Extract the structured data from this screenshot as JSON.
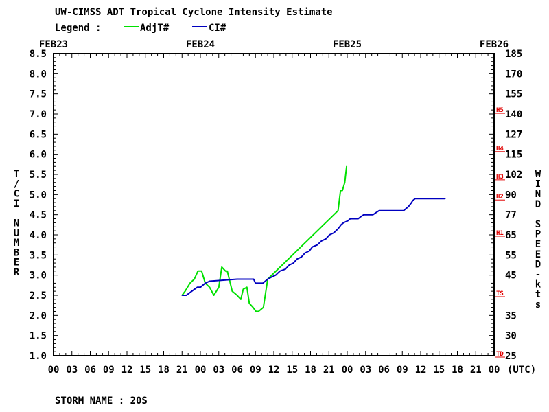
{
  "header": {
    "title": "UW-CIMSS ADT Tropical Cyclone Intensity Estimate",
    "legend_label": "Legend :",
    "legend_items": [
      {
        "name": "AdjT#",
        "color": "#00e000"
      },
      {
        "name": "CI#",
        "color": "#0000c0"
      }
    ]
  },
  "footer": {
    "storm_name": "STORM NAME : 20S"
  },
  "chart_data": {
    "type": "line",
    "title": "UW-CIMSS ADT Tropical Cyclone Intensity Estimate",
    "ylabel_left": "T/CI NUMBER",
    "ylabel_right": "WIND SPEED-kts",
    "xlabel_unit": "(UTC)",
    "x_range_hours": [
      0,
      72
    ],
    "ylim": [
      1.0,
      8.5
    ],
    "date_labels": [
      {
        "label": "FEB23",
        "hour": 0
      },
      {
        "label": "FEB24",
        "hour": 24
      },
      {
        "label": "FEB25",
        "hour": 48
      },
      {
        "label": "FEB26",
        "hour": 72
      }
    ],
    "x_tick_labels": [
      "00",
      "03",
      "06",
      "09",
      "12",
      "15",
      "18",
      "21",
      "00",
      "03",
      "06",
      "09",
      "12",
      "15",
      "18",
      "21",
      "00",
      "03",
      "06",
      "09",
      "12",
      "15",
      "18",
      "21",
      "00"
    ],
    "left_ticks": [
      "1.0",
      "1.5",
      "2.0",
      "2.5",
      "3.0",
      "3.5",
      "4.0",
      "4.5",
      "5.0",
      "5.5",
      "6.0",
      "6.5",
      "7.0",
      "7.5",
      "8.0",
      "8.5"
    ],
    "right_ticks": [
      "25",
      "30",
      "35",
      "45",
      "55",
      "65",
      "77",
      "90",
      "102",
      "115",
      "127",
      "140",
      "155",
      "170",
      "185"
    ],
    "category_markers": [
      {
        "label": "TD",
        "t": 1.0
      },
      {
        "label": "TS",
        "t": 2.5
      },
      {
        "label": "H1",
        "t": 4.0
      },
      {
        "label": "H2",
        "t": 4.9
      },
      {
        "label": "H3",
        "t": 5.4
      },
      {
        "label": "H4",
        "t": 6.1
      },
      {
        "label": "H5",
        "t": 7.05
      }
    ],
    "series": [
      {
        "name": "AdjT#",
        "color": "#00e000",
        "x": [
          21.0,
          21.5,
          22.3,
          23.0,
          23.6,
          24.2,
          24.8,
          25.5,
          26.2,
          27.0,
          27.5,
          28.1,
          28.4,
          29.2,
          30.0,
          30.6,
          31.0,
          31.6,
          32.0,
          32.6,
          33.1,
          33.5,
          34.3,
          35.0,
          46.5,
          46.9,
          47.2,
          47.6,
          47.9
        ],
        "values": [
          2.5,
          2.6,
          2.8,
          2.9,
          3.1,
          3.1,
          2.8,
          2.7,
          2.5,
          2.7,
          3.2,
          3.1,
          3.1,
          2.6,
          2.5,
          2.4,
          2.65,
          2.7,
          2.3,
          2.2,
          2.1,
          2.1,
          2.2,
          2.9,
          4.6,
          5.1,
          5.1,
          5.3,
          5.7
        ]
      },
      {
        "name": "CI#",
        "color": "#0000c0",
        "x": [
          21.0,
          21.7,
          22.6,
          23.5,
          24.0,
          24.8,
          25.5,
          30.0,
          32.7,
          33.0,
          34.2,
          35.0,
          35.6,
          36.3,
          37.0,
          37.9,
          38.5,
          39.2,
          39.8,
          40.5,
          41.1,
          41.8,
          42.3,
          43.1,
          43.8,
          44.5,
          45.1,
          45.8,
          46.5,
          47.0,
          47.4,
          48.1,
          48.5,
          49.0,
          49.4,
          49.8,
          50.2,
          50.7,
          51.1,
          51.5,
          52.2,
          52.7,
          53.2,
          53.6,
          54.3,
          54.9,
          55.3,
          55.8,
          56.3,
          56.7,
          57.2,
          58.0,
          58.5,
          58.7,
          59.1,
          59.6,
          60.1,
          61.0,
          61.4,
          61.8,
          62.0,
          62.9,
          63.3,
          64.0
        ],
        "values": [
          2.5,
          2.5,
          2.6,
          2.7,
          2.7,
          2.8,
          2.85,
          2.9,
          2.9,
          2.8,
          2.8,
          2.9,
          2.95,
          3.0,
          3.1,
          3.15,
          3.25,
          3.3,
          3.4,
          3.45,
          3.55,
          3.6,
          3.7,
          3.75,
          3.85,
          3.9,
          4.0,
          4.05,
          4.15,
          4.25,
          4.3,
          4.35,
          4.4,
          4.4,
          4.4,
          4.4,
          4.45,
          4.5,
          4.5,
          4.5,
          4.5,
          4.55,
          4.6,
          4.6,
          4.6,
          4.6,
          4.6,
          4.6,
          4.6,
          4.6,
          4.6,
          4.7,
          4.8,
          4.85,
          4.9,
          4.9,
          4.9,
          4.9,
          4.9,
          4.9,
          4.9,
          4.9,
          4.9,
          4.9
        ]
      }
    ]
  }
}
